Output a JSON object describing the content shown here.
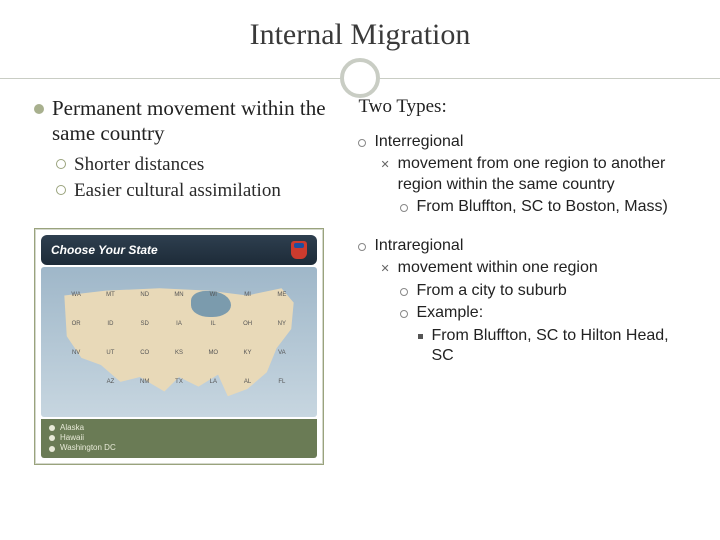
{
  "title": "Internal Migration",
  "left": {
    "main": "Permanent movement within the same country",
    "subs": [
      "Shorter distances",
      "Easier cultural assimilation"
    ]
  },
  "map": {
    "header": "Choose Your State",
    "footer": [
      "Alaska",
      "Hawaii",
      "Washington DC"
    ],
    "bg_gradient_top": "#9fb7c9",
    "land_color": "#e8d9b8",
    "footer_bg": "#6a7b55"
  },
  "right": {
    "heading": "Two Types:",
    "items": [
      {
        "label": "Interregional",
        "def": "movement from one region to another region within the same country",
        "exLabel": "From Bluffton, SC to Boston, Mass)"
      },
      {
        "label": "Intraregional",
        "def": "movement within one region",
        "ex1": "From a city to suburb",
        "ex2Label": "Example:",
        "ex2Text": "From Bluffton, SC to Hilton Head, SC"
      }
    ]
  },
  "colors": {
    "accent": "#a8b08e",
    "ring": "#c9cdc4",
    "text": "#2a2a2a"
  }
}
